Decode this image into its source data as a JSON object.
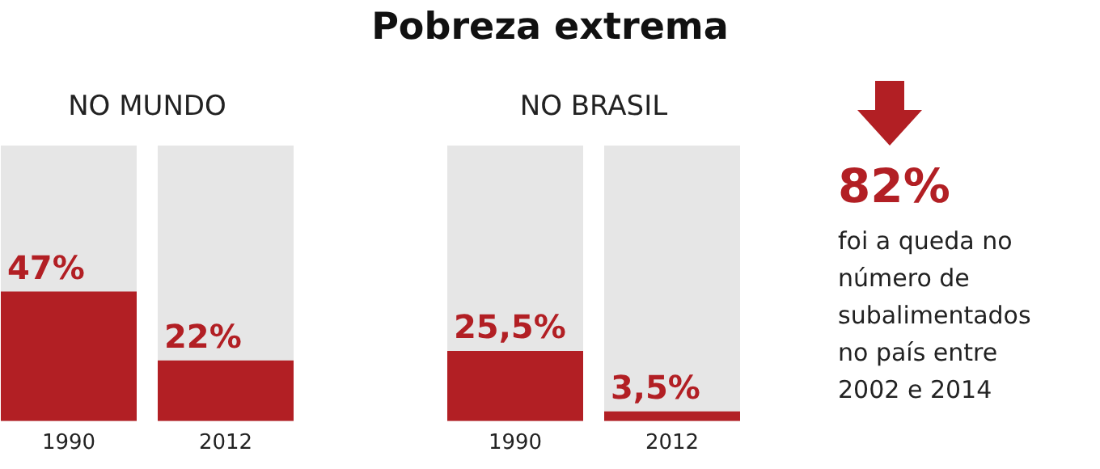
{
  "chart_data": [
    {
      "type": "bar",
      "subtitle": "NO MUNDO",
      "categories": [
        "1990",
        "2012"
      ],
      "values": [
        47,
        22
      ],
      "value_labels": [
        "47%",
        "22%"
      ],
      "color": "#b21f24",
      "ylim": [
        0,
        100
      ],
      "tick_labels": "x"
    },
    {
      "type": "bar",
      "title": "Pobreza extrema",
      "subtitle": "NO BRASIL",
      "categories": [
        "1990",
        "2012"
      ],
      "values": [
        25.5,
        3.5
      ],
      "value_labels": [
        "25,5%",
        "3,5%"
      ],
      "color": "#b21f24",
      "ylim": [
        0,
        100
      ],
      "tick_labels": "x"
    },
    {
      "type": "other",
      "annotations": [
        "82%",
        "foi a queda no número de subalimentados no país entre 2002 e 2014"
      ]
    }
  ]
}
